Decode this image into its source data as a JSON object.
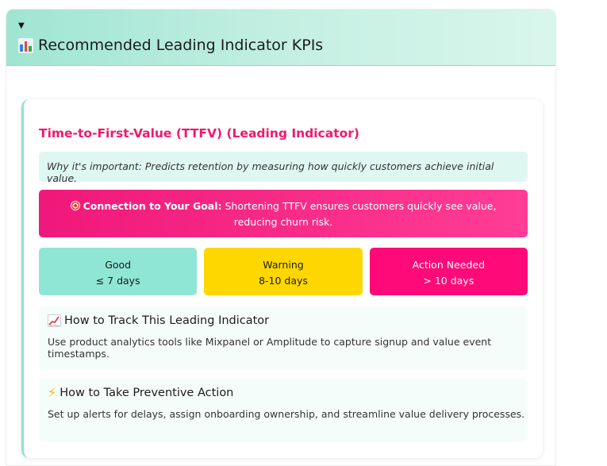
{
  "header": {
    "toggle_icon": "▼",
    "title": "Recommended Leading Indicator KPIs",
    "icon": "bar-chart-icon"
  },
  "kpi": {
    "title": "Time-to-First-Value (TTFV) (Leading Indicator)",
    "why_important": "Why it's important: Predicts retention by measuring how quickly customers achieve initial value.",
    "goal_label": "Connection to Your Goal:",
    "goal_text": " Shortening TTFV ensures customers quickly see value, reducing churn risk.",
    "goal_icon": "target-icon",
    "thresholds": [
      {
        "label": "Good",
        "value": "≤ 7 days",
        "color": "#8fe6d4"
      },
      {
        "label": "Warning",
        "value": "8-10 days",
        "color": "#ffd700"
      },
      {
        "label": "Action Needed",
        "value": "> 10 days",
        "color": "#ff0a78"
      }
    ],
    "track": {
      "icon": "chart-increasing-icon",
      "title": "How to Track This Leading Indicator",
      "body": "Use product analytics tools like Mixpanel or Amplitude to capture signup and value event timestamps."
    },
    "action": {
      "icon": "lightning-icon",
      "title": "How to Take Preventive Action",
      "body": "Set up alerts for delays, assign onboarding ownership, and streamline value delivery processes."
    }
  },
  "colors": {
    "accent_pink": "#f0186e",
    "accent_teal": "#8fe3cf",
    "warning_yellow": "#ffd700"
  }
}
